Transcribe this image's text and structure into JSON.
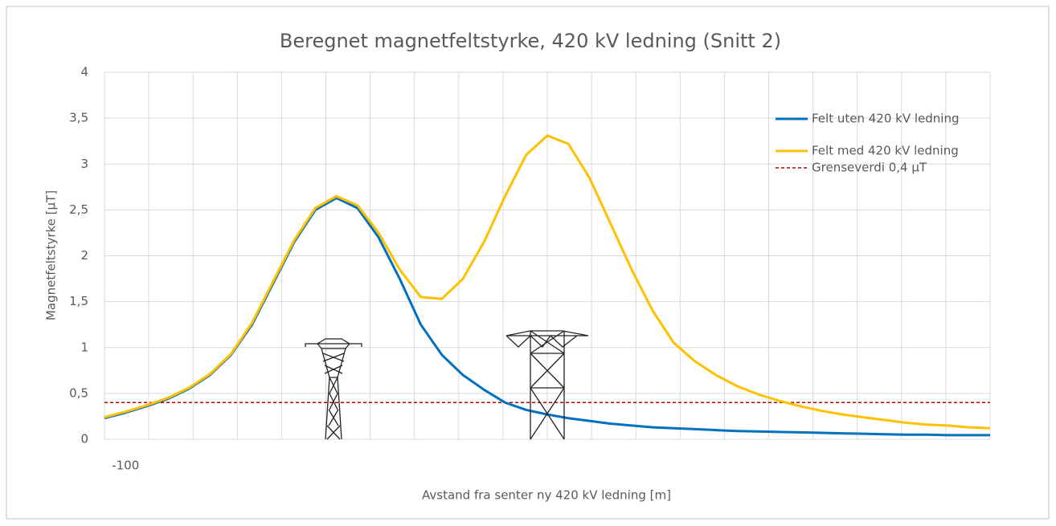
{
  "chart_data": {
    "type": "line",
    "title": "Beregnet magnetfeltstyrke, 420 kV ledning (Snitt 2)",
    "xlabel": "Avstand fra senter ny 420 kV ledning [m]",
    "ylabel": "Magnetfeltstyrke [µT]",
    "x": [
      -105,
      -100,
      -95,
      -90,
      -85,
      -80,
      -75,
      -70,
      -65,
      -60,
      -55,
      -50,
      -45,
      -40,
      -35,
      -30,
      -25,
      -20,
      -15,
      -10,
      -5,
      0,
      5,
      10,
      15,
      20,
      25,
      30,
      35,
      40,
      45,
      50,
      55,
      60,
      65,
      70,
      75,
      80,
      85,
      90,
      95,
      100,
      105
    ],
    "series": [
      {
        "name": "Felt uten 420 kV ledning",
        "color": "#0070c0",
        "values": [
          0.23,
          0.29,
          0.36,
          0.44,
          0.55,
          0.7,
          0.92,
          1.25,
          1.7,
          2.15,
          2.5,
          2.63,
          2.52,
          2.2,
          1.75,
          1.25,
          0.92,
          0.7,
          0.54,
          0.4,
          0.32,
          0.27,
          0.23,
          0.2,
          0.17,
          0.15,
          0.13,
          0.12,
          0.11,
          0.1,
          0.09,
          0.085,
          0.08,
          0.075,
          0.07,
          0.065,
          0.06,
          0.055,
          0.05,
          0.05,
          0.045,
          0.045,
          0.045
        ]
      },
      {
        "name": "Felt med 420 kV ledning",
        "color": "#ffc000",
        "values": [
          0.24,
          0.3,
          0.37,
          0.45,
          0.56,
          0.71,
          0.93,
          1.27,
          1.72,
          2.17,
          2.52,
          2.65,
          2.55,
          2.25,
          1.85,
          1.55,
          1.53,
          1.75,
          2.15,
          2.65,
          3.1,
          3.31,
          3.22,
          2.85,
          2.35,
          1.85,
          1.4,
          1.05,
          0.85,
          0.7,
          0.58,
          0.49,
          0.42,
          0.36,
          0.31,
          0.27,
          0.24,
          0.21,
          0.18,
          0.16,
          0.15,
          0.13,
          0.12
        ]
      }
    ],
    "reference_line": {
      "name": "Grenseverdi 0,4 µT",
      "color": "#c00000",
      "value": 0.4
    },
    "xlim": [
      -105,
      105
    ],
    "xticks": [
      -100
    ],
    "xgrid": [
      -105,
      -94.5,
      -84,
      -73.5,
      -63,
      -52.5,
      -42,
      -31.5,
      -21,
      -10.5,
      0,
      10.5,
      21,
      31.5,
      42,
      52.5,
      63,
      73.5,
      84,
      94.5,
      105
    ],
    "ylim": [
      0,
      4
    ],
    "yticks": [
      0,
      {
        "value": 0.5,
        "label": "0,5"
      },
      1,
      {
        "value": 1.5,
        "label": "1,5"
      },
      2,
      {
        "value": 2.5,
        "label": "2,5"
      },
      3,
      {
        "value": 3.5,
        "label": "3,5"
      },
      4
    ],
    "grid": true,
    "legend": "upper right"
  }
}
